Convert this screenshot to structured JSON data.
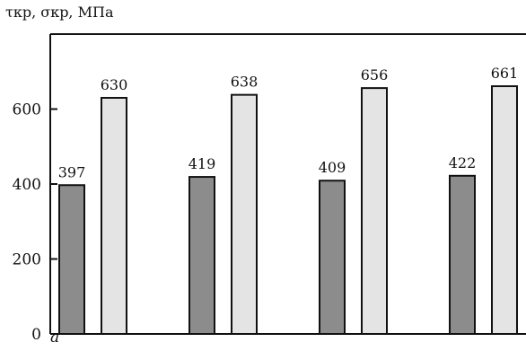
{
  "chart_data": {
    "type": "bar",
    "title": "",
    "xlabel": "",
    "ylabel": "τкр, σкр, МПа",
    "panel_label": "а",
    "ylim": [
      0,
      800
    ],
    "yticks": [
      0,
      200,
      400,
      600
    ],
    "ytick_labels": [
      "0",
      "200",
      "400",
      "600"
    ],
    "grid": false,
    "legend": "none",
    "groups": 4,
    "series": [
      {
        "color": "#8c8c8c",
        "values": [
          397,
          419,
          409,
          422
        ]
      },
      {
        "color": "#e4e4e4",
        "values": [
          630,
          638,
          656,
          661
        ]
      }
    ],
    "value_labels": [
      [
        "397",
        "419",
        "409",
        "422"
      ],
      [
        "630",
        "638",
        "656",
        "661"
      ]
    ]
  }
}
